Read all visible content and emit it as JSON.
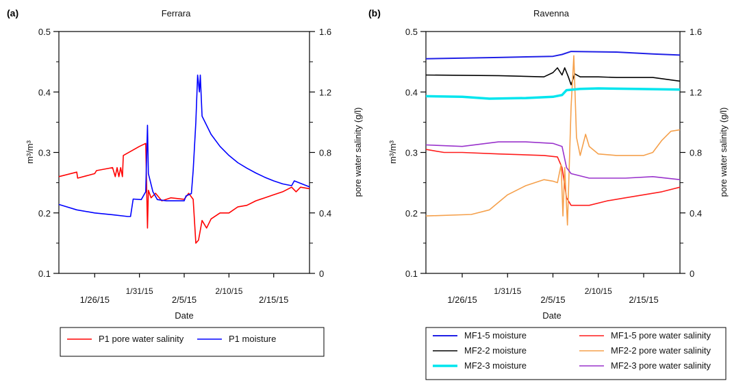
{
  "chart_data": [
    {
      "type": "line",
      "panel": "(a)",
      "title": "Ferrara",
      "xlabel": "Date",
      "ylabel": "m³/m³",
      "y2label": "pore water salinity (g/l)",
      "xlim": [
        "2015-01-22",
        "2015-02-19"
      ],
      "ylim": [
        0.1,
        0.5
      ],
      "y2lim": [
        0,
        1.6
      ],
      "yticks": [
        "0.1",
        "0.2",
        "0.3",
        "0.4",
        "0.5"
      ],
      "y2ticks": [
        "0",
        "0.4",
        "0.8",
        "1.2",
        "1.6"
      ],
      "xticks": [
        {
          "label": "1/26/15",
          "date": "2015-01-26",
          "row": "low"
        },
        {
          "label": "1/31/15",
          "date": "2015-01-31",
          "row": "high"
        },
        {
          "label": "2/5/15",
          "date": "2015-02-05",
          "row": "low"
        },
        {
          "label": "2/10/15",
          "date": "2015-02-10",
          "row": "high"
        },
        {
          "label": "2/15/15",
          "date": "2015-02-15",
          "row": "low"
        }
      ],
      "legend": {
        "placement": "bottom",
        "columns": 2
      },
      "series": [
        {
          "name": "P1 pore water salinity",
          "axis": "right",
          "color": "#ff0000",
          "width": 1.6,
          "points": [
            [
              "2015-01-22",
              0.64
            ],
            [
              "2015-01-24",
              0.67
            ],
            [
              "2015-01-24.1",
              0.63
            ],
            [
              "2015-01-26",
              0.66
            ],
            [
              "2015-01-26.2",
              0.68
            ],
            [
              "2015-01-28",
              0.7
            ],
            [
              "2015-01-28.3",
              0.64
            ],
            [
              "2015-01-28.5",
              0.7
            ],
            [
              "2015-01-28.7",
              0.64
            ],
            [
              "2015-01-28.9",
              0.7
            ],
            [
              "2015-01-29.1",
              0.64
            ],
            [
              "2015-01-29.2",
              0.78
            ],
            [
              "2015-01-31",
              0.84
            ],
            [
              "2015-01-31.7",
              0.86
            ],
            [
              "2015-01-31.9",
              0.3
            ],
            [
              "2015-02-01",
              0.55
            ],
            [
              "2015-02-01.3",
              0.5
            ],
            [
              "2015-02-01.8",
              0.53
            ],
            [
              "2015-02-02.5",
              0.48
            ],
            [
              "2015-02-03.5",
              0.5
            ],
            [
              "2015-02-05",
              0.49
            ],
            [
              "2015-02-05.5",
              0.53
            ],
            [
              "2015-02-06",
              0.49
            ],
            [
              "2015-02-06.3",
              0.2
            ],
            [
              "2015-02-06.6",
              0.22
            ],
            [
              "2015-02-07",
              0.35
            ],
            [
              "2015-02-07.5",
              0.3
            ],
            [
              "2015-02-08",
              0.36
            ],
            [
              "2015-02-09",
              0.4
            ],
            [
              "2015-02-10",
              0.4
            ],
            [
              "2015-02-11",
              0.44
            ],
            [
              "2015-02-12",
              0.45
            ],
            [
              "2015-02-13",
              0.48
            ],
            [
              "2015-02-14",
              0.5
            ],
            [
              "2015-02-15",
              0.52
            ],
            [
              "2015-02-16",
              0.54
            ],
            [
              "2015-02-17",
              0.57
            ],
            [
              "2015-02-17.5",
              0.54
            ],
            [
              "2015-02-18",
              0.57
            ],
            [
              "2015-02-19",
              0.56
            ]
          ]
        },
        {
          "name": "P1 moisture",
          "axis": "left",
          "color": "#0000ff",
          "width": 1.6,
          "points": [
            [
              "2015-01-22",
              0.214
            ],
            [
              "2015-01-24",
              0.205
            ],
            [
              "2015-01-26",
              0.2
            ],
            [
              "2015-01-28",
              0.197
            ],
            [
              "2015-01-29.7",
              0.194
            ],
            [
              "2015-01-30",
              0.194
            ],
            [
              "2015-01-30.3",
              0.223
            ],
            [
              "2015-01-31.2",
              0.222
            ],
            [
              "2015-01-31.7",
              0.235
            ],
            [
              "2015-01-31.9",
              0.345
            ],
            [
              "2015-02-01",
              0.265
            ],
            [
              "2015-02-01.5",
              0.235
            ],
            [
              "2015-02-02",
              0.222
            ],
            [
              "2015-02-03",
              0.22
            ],
            [
              "2015-02-05",
              0.22
            ],
            [
              "2015-02-05.2",
              0.228
            ],
            [
              "2015-02-05.8",
              0.232
            ],
            [
              "2015-02-06",
              0.27
            ],
            [
              "2015-02-06.3",
              0.35
            ],
            [
              "2015-02-06.5",
              0.428
            ],
            [
              "2015-02-06.7",
              0.4
            ],
            [
              "2015-02-06.8",
              0.428
            ],
            [
              "2015-02-07",
              0.36
            ],
            [
              "2015-02-08",
              0.33
            ],
            [
              "2015-02-09",
              0.31
            ],
            [
              "2015-02-10",
              0.295
            ],
            [
              "2015-02-11",
              0.283
            ],
            [
              "2015-02-12",
              0.274
            ],
            [
              "2015-02-13",
              0.266
            ],
            [
              "2015-02-14",
              0.259
            ],
            [
              "2015-02-15",
              0.253
            ],
            [
              "2015-02-16",
              0.248
            ],
            [
              "2015-02-17",
              0.245
            ],
            [
              "2015-02-17.3",
              0.253
            ],
            [
              "2015-02-19",
              0.243
            ]
          ]
        }
      ]
    },
    {
      "type": "line",
      "panel": "(b)",
      "title": "Ravenna",
      "xlabel": "Date",
      "ylabel": "m³/m³",
      "y2label": "pore water salinity (g/l)",
      "xlim": [
        "2015-01-22",
        "2015-02-19"
      ],
      "ylim": [
        0.1,
        0.5
      ],
      "y2lim": [
        0,
        1.6
      ],
      "yticks": [
        "0.1",
        "0.2",
        "0.3",
        "0.4",
        "0.5"
      ],
      "y2ticks": [
        "0",
        "0.4",
        "0.8",
        "1.2",
        "1.6"
      ],
      "xticks": [
        {
          "label": "1/26/15",
          "date": "2015-01-26",
          "row": "low"
        },
        {
          "label": "1/31/15",
          "date": "2015-01-31",
          "row": "high"
        },
        {
          "label": "2/5/15",
          "date": "2015-02-05",
          "row": "low"
        },
        {
          "label": "2/10/15",
          "date": "2015-02-10",
          "row": "high"
        },
        {
          "label": "2/15/15",
          "date": "2015-02-15",
          "row": "low"
        }
      ],
      "legend": {
        "placement": "bottom",
        "columns": 2
      },
      "series": [
        {
          "name": "MF1-5 moisture",
          "axis": "left",
          "color": "#1f1fe6",
          "width": 2,
          "points": [
            [
              "2015-01-22",
              0.455
            ],
            [
              "2015-01-30",
              0.457
            ],
            [
              "2015-02-05",
              0.459
            ],
            [
              "2015-02-06",
              0.462
            ],
            [
              "2015-02-07",
              0.467
            ],
            [
              "2015-02-12",
              0.466
            ],
            [
              "2015-02-16",
              0.463
            ],
            [
              "2015-02-19",
              0.461
            ]
          ]
        },
        {
          "name": "MF1-5 pore water salinity",
          "axis": "right",
          "color": "#ff1a1a",
          "width": 1.6,
          "points": [
            [
              "2015-01-22",
              0.82
            ],
            [
              "2015-01-24",
              0.8
            ],
            [
              "2015-01-26",
              0.8
            ],
            [
              "2015-01-30",
              0.79
            ],
            [
              "2015-02-04",
              0.78
            ],
            [
              "2015-02-05.5",
              0.77
            ],
            [
              "2015-02-06",
              0.7
            ],
            [
              "2015-02-06.5",
              0.5
            ],
            [
              "2015-02-07",
              0.45
            ],
            [
              "2015-02-09",
              0.45
            ],
            [
              "2015-02-11",
              0.48
            ],
            [
              "2015-02-13",
              0.5
            ],
            [
              "2015-02-15",
              0.52
            ],
            [
              "2015-02-17",
              0.54
            ],
            [
              "2015-02-19",
              0.57
            ]
          ]
        },
        {
          "name": "MF2-2 moisture",
          "axis": "left",
          "color": "#000000",
          "width": 1.6,
          "points": [
            [
              "2015-01-22",
              0.428
            ],
            [
              "2015-01-30",
              0.427
            ],
            [
              "2015-02-04",
              0.425
            ],
            [
              "2015-02-05",
              0.432
            ],
            [
              "2015-02-05.5",
              0.44
            ],
            [
              "2015-02-06",
              0.428
            ],
            [
              "2015-02-06.3",
              0.44
            ],
            [
              "2015-02-06.7",
              0.425
            ],
            [
              "2015-02-07",
              0.412
            ],
            [
              "2015-02-07.4",
              0.43
            ],
            [
              "2015-02-08",
              0.425
            ],
            [
              "2015-02-10",
              0.425
            ],
            [
              "2015-02-12",
              0.424
            ],
            [
              "2015-02-16",
              0.424
            ],
            [
              "2015-02-19",
              0.418
            ]
          ]
        },
        {
          "name": "MF2-2 pore water salinity",
          "axis": "right",
          "color": "#f5a04b",
          "width": 1.6,
          "points": [
            [
              "2015-01-22",
              0.38
            ],
            [
              "2015-01-27",
              0.39
            ],
            [
              "2015-01-29",
              0.42
            ],
            [
              "2015-01-31",
              0.52
            ],
            [
              "2015-02-02",
              0.58
            ],
            [
              "2015-02-04",
              0.62
            ],
            [
              "2015-02-05",
              0.61
            ],
            [
              "2015-02-05.5",
              0.6
            ],
            [
              "2015-02-05.9",
              0.72
            ],
            [
              "2015-02-06.1",
              0.38
            ],
            [
              "2015-02-06.3",
              0.7
            ],
            [
              "2015-02-06.6",
              0.32
            ],
            [
              "2015-02-07",
              1.1
            ],
            [
              "2015-02-07.3",
              1.44
            ],
            [
              "2015-02-07.6",
              0.9
            ],
            [
              "2015-02-08",
              0.78
            ],
            [
              "2015-02-08.6",
              0.92
            ],
            [
              "2015-02-09",
              0.84
            ],
            [
              "2015-02-10",
              0.79
            ],
            [
              "2015-02-12",
              0.78
            ],
            [
              "2015-02-15",
              0.78
            ],
            [
              "2015-02-16",
              0.8
            ],
            [
              "2015-02-17",
              0.88
            ],
            [
              "2015-02-18",
              0.94
            ],
            [
              "2015-02-19",
              0.95
            ]
          ]
        },
        {
          "name": "MF2-3 moisture",
          "axis": "left",
          "color": "#00e5ee",
          "width": 3.5,
          "points": [
            [
              "2015-01-22",
              0.393
            ],
            [
              "2015-01-26",
              0.392
            ],
            [
              "2015-01-29",
              0.389
            ],
            [
              "2015-02-02",
              0.39
            ],
            [
              "2015-02-05",
              0.392
            ],
            [
              "2015-02-06",
              0.395
            ],
            [
              "2015-02-06.5",
              0.403
            ],
            [
              "2015-02-08",
              0.405
            ],
            [
              "2015-02-10",
              0.406
            ],
            [
              "2015-02-14",
              0.405
            ],
            [
              "2015-02-19",
              0.404
            ]
          ]
        },
        {
          "name": "MF2-3 pore water salinity",
          "axis": "right",
          "color": "#9932cc",
          "width": 1.6,
          "points": [
            [
              "2015-01-22",
              0.85
            ],
            [
              "2015-01-26",
              0.84
            ],
            [
              "2015-01-30",
              0.87
            ],
            [
              "2015-02-02",
              0.87
            ],
            [
              "2015-02-05",
              0.86
            ],
            [
              "2015-02-06",
              0.84
            ],
            [
              "2015-02-06.5",
              0.7
            ],
            [
              "2015-02-07",
              0.66
            ],
            [
              "2015-02-09",
              0.63
            ],
            [
              "2015-02-13",
              0.63
            ],
            [
              "2015-02-16",
              0.64
            ],
            [
              "2015-02-19",
              0.62
            ]
          ]
        }
      ]
    }
  ]
}
